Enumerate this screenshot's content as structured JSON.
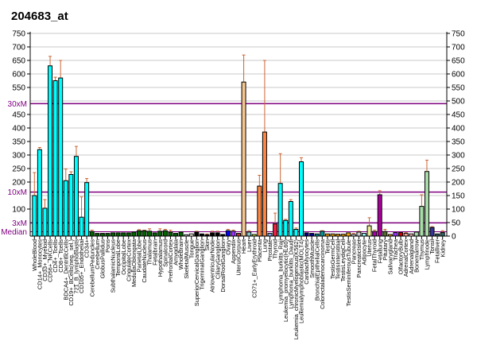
{
  "chart_data": {
    "type": "bar",
    "title": "204683_at",
    "xlabel": "",
    "ylabel": "",
    "ylim": [
      0,
      750
    ],
    "yticks_right": [
      0,
      50,
      100,
      150,
      200,
      250,
      300,
      350,
      400,
      450,
      500,
      550,
      600,
      650,
      700,
      750
    ],
    "yticks_left": [
      {
        "value": 750,
        "label": "750"
      },
      {
        "value": 700,
        "label": "700"
      },
      {
        "value": 650,
        "label": "650"
      },
      {
        "value": 600,
        "label": "600"
      },
      {
        "value": 550,
        "label": "550"
      },
      {
        "value": 450,
        "label": "450"
      },
      {
        "value": 400,
        "label": "400"
      },
      {
        "value": 350,
        "label": "350"
      },
      {
        "value": 300,
        "label": "300"
      },
      {
        "value": 250,
        "label": "250"
      },
      {
        "value": 200,
        "label": "200"
      },
      {
        "value": 100,
        "label": "100"
      }
    ],
    "reference_lines": [
      {
        "label": "30xM",
        "value": 490
      },
      {
        "label": "10xM",
        "value": 163
      },
      {
        "label": "3xM",
        "value": 49
      },
      {
        "label": "Median",
        "value": 16
      }
    ],
    "grid": true,
    "categories": [
      "WholeBlood",
      "CD14+_Monocytes",
      "CD33+_Myeloid",
      "CD56+_NKCells",
      "CD4+_Tcells",
      "CD8+_Tcells",
      "BDCA4+_DentriticCells",
      "CD19+_BCells(neg._sel.)",
      "721_B_lymphoblasts",
      "CD105+_Endothelial",
      "CD34+",
      "CerebellumPeduncles",
      "Cerebellum",
      "GlobusPallidus",
      "Pons",
      "SubthalamicNucleus",
      "TemporalLobe",
      "OccipitalLobe",
      "CingulateCortex",
      "MedullaOblongata",
      "ParietalLobe",
      "CaudateNucleus",
      "Thalamus",
      "Fetalbrain",
      "Hypothalamus",
      "Spinalcord",
      "PrefrontalCortex",
      "Amygdala",
      "WholeBrain",
      "SkeletalMuscle",
      "Tongue",
      "SuperiorCervicalGanglion",
      "TrigeminalGanglion",
      "Skin",
      "AtrioventricularNode",
      "CiliaryGanglion",
      "DorsalRootGanglion",
      "Ovary",
      "Appendix",
      "UterusCorpus",
      "Heart",
      "Liver",
      "CD71+_EarlyErythroid",
      "Placenta",
      "Lung",
      "Prostate",
      "Thyroid",
      "Lymphoma_burkitts_Raji",
      "Leukemia_promyelocytic(HL60)",
      "Lymphoma_burkitts_Daudi",
      "Leukemia_chronicMyelogenous(K562)",
      "Leukemialymphoblastic(MOLT4)",
      "CardiacMyocytes",
      "SmoothMuscle",
      "BronchialEpithelialCells",
      "Colorectaladenocarcinoma",
      "Testis",
      "TestisGermCell",
      "TestisInterstitial",
      "TestisLeydigCell",
      "TestisSeminiferousTubule",
      "Pancreas",
      "PancreaticIslet",
      "Adipocyte",
      "Uterus",
      "FetalThyroid",
      "Fetallung",
      "Pituitary",
      "Salivarygland",
      "Trachea",
      "OlfactoryBulb",
      "AdrenalCortex",
      "Adrenalgland",
      "Bonemarrow",
      "Thymus",
      "Lymphnode",
      "Tonsil",
      "Fetalliver",
      "Kidney"
    ],
    "values": [
      150,
      320,
      103,
      630,
      575,
      585,
      205,
      228,
      295,
      70,
      198,
      17,
      10,
      10,
      10,
      12,
      12,
      12,
      12,
      15,
      20,
      20,
      18,
      12,
      18,
      20,
      15,
      10,
      15,
      5,
      8,
      15,
      8,
      5,
      12,
      12,
      6,
      20,
      18,
      10,
      570,
      15,
      6,
      185,
      385,
      10,
      45,
      195,
      58,
      128,
      25,
      275,
      12,
      10,
      8,
      18,
      8,
      8,
      7,
      7,
      12,
      6,
      15,
      10,
      38,
      17,
      153,
      17,
      6,
      13,
      13,
      10,
      8,
      15,
      110,
      239,
      32,
      8,
      13
    ],
    "error_top": [
      235,
      328,
      135,
      665,
      588,
      650,
      248,
      238,
      332,
      145,
      213,
      22,
      null,
      null,
      null,
      null,
      null,
      null,
      null,
      null,
      24,
      22,
      27,
      null,
      27,
      25,
      22,
      null,
      null,
      null,
      null,
      18,
      null,
      8,
      18,
      18,
      null,
      25,
      22,
      null,
      670,
      20,
      null,
      225,
      650,
      null,
      85,
      305,
      62,
      135,
      30,
      290,
      null,
      null,
      null,
      20,
      null,
      null,
      null,
      null,
      null,
      10,
      18,
      null,
      68,
      22,
      168,
      25,
      null,
      null,
      null,
      13,
      null,
      null,
      153,
      281,
      35,
      null,
      20
    ],
    "colors": [
      "#00FFFF",
      "#00FFFF",
      "#00FFFF",
      "#00FFFF",
      "#00FFFF",
      "#00FFFF",
      "#00FFFF",
      "#00FFFF",
      "#00FFFF",
      "#00FFFF",
      "#00FFFF",
      "#006600",
      "#006600",
      "#006600",
      "#006600",
      "#006600",
      "#006600",
      "#006600",
      "#006600",
      "#006600",
      "#006600",
      "#006600",
      "#006600",
      "#006600",
      "#006600",
      "#006600",
      "#006600",
      "#006600",
      "#006600",
      "#FFFFFF",
      "#FFFFF0",
      "#000000",
      "#000000",
      "#000000",
      "#000000",
      "#000000",
      "#000000",
      "#0000FF",
      "#9933FF",
      "#CC3333",
      "#F5C690",
      "#88CCCC",
      "#CCFF33",
      "#FF8844",
      "#FF8844",
      "#88AAEE",
      "#EE2244",
      "#00FFFF",
      "#00FFFF",
      "#00FFFF",
      "#00FFFF",
      "#00FFFF",
      "#000099",
      "#000099",
      "#009999",
      "#009999",
      "#FFAA00",
      "#FFAA00",
      "#FFAA00",
      "#FFAA00",
      "#FFAA00",
      "#FFFFFF",
      "#CCCCCC",
      "#99FFFF",
      "#EEEE99",
      "#AA00AA",
      "#AA0099",
      "#556B2F",
      "#FFAA00",
      "#9933FF",
      "#CC0000",
      "#FFAA99",
      "#FFCCCC",
      "#AADDAA",
      "#AADDAA",
      "#AADDAA",
      "#333399",
      "#336666",
      "#336666"
    ],
    "error_color": "#CC6633",
    "reference_color": "#800080"
  }
}
